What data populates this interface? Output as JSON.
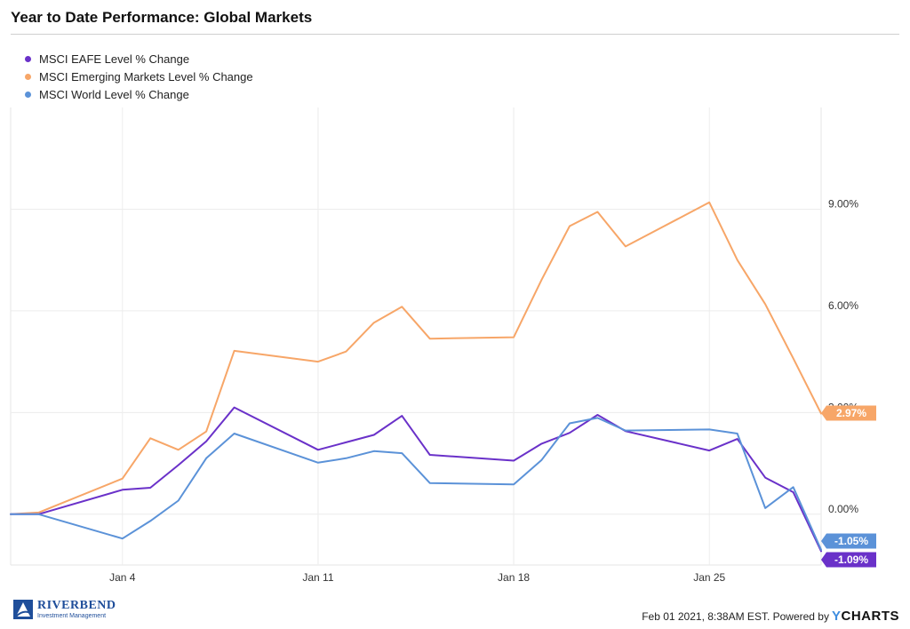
{
  "chart_data": {
    "type": "line",
    "title": "Year to Date Performance: Global Markets",
    "x": [
      0,
      1,
      4,
      5,
      6,
      7,
      8,
      11,
      12,
      13,
      14,
      15,
      18,
      19,
      20,
      21,
      22,
      25,
      26,
      27,
      28,
      29
    ],
    "x_tick_labels": [
      "Jan 4",
      "Jan 11",
      "Jan 18",
      "Jan 25"
    ],
    "x_tick_positions": [
      4,
      11,
      18,
      25
    ],
    "xlim": [
      0,
      29
    ],
    "y_tick_labels": [
      "0.00%",
      "3.00%",
      "6.00%",
      "9.00%"
    ],
    "y_tick_values": [
      0,
      3,
      6,
      9
    ],
    "ylim": [
      -1.5,
      12
    ],
    "grid": true,
    "legend_position": "top-left",
    "series": [
      {
        "name": "MSCI EAFE Level % Change",
        "color": "#6a31c9",
        "values": [
          0.0,
          0.0,
          0.72,
          0.78,
          1.45,
          2.15,
          3.15,
          1.9,
          2.12,
          2.34,
          2.9,
          1.75,
          1.58,
          2.08,
          2.4,
          2.93,
          2.45,
          1.88,
          2.22,
          1.08,
          0.65,
          -1.09
        ],
        "end_label": "-1.09%"
      },
      {
        "name": "MSCI Emerging Markets Level % Change",
        "color": "#f7a668",
        "values": [
          0.0,
          0.05,
          1.05,
          2.24,
          1.9,
          2.44,
          4.82,
          4.5,
          4.8,
          5.65,
          6.12,
          5.18,
          5.22,
          6.92,
          8.5,
          8.92,
          7.9,
          9.2,
          7.5,
          6.2,
          4.6,
          2.97
        ],
        "end_label": "2.97%"
      },
      {
        "name": "MSCI World Level % Change",
        "color": "#5b92d8",
        "values": [
          0.0,
          0.0,
          -0.72,
          -0.2,
          0.4,
          1.65,
          2.38,
          1.52,
          1.65,
          1.86,
          1.8,
          0.92,
          0.88,
          1.6,
          2.68,
          2.84,
          2.47,
          2.5,
          2.38,
          0.18,
          0.8,
          -1.05
        ],
        "end_label": "-1.05%"
      }
    ]
  },
  "footer": {
    "logo_name": "RIVERBEND",
    "logo_sub": "Investment Management",
    "timestamp": "Feb 01 2021, 8:38AM EST. Powered by",
    "brand_y": "Y",
    "brand_rest": "CHARTS"
  }
}
